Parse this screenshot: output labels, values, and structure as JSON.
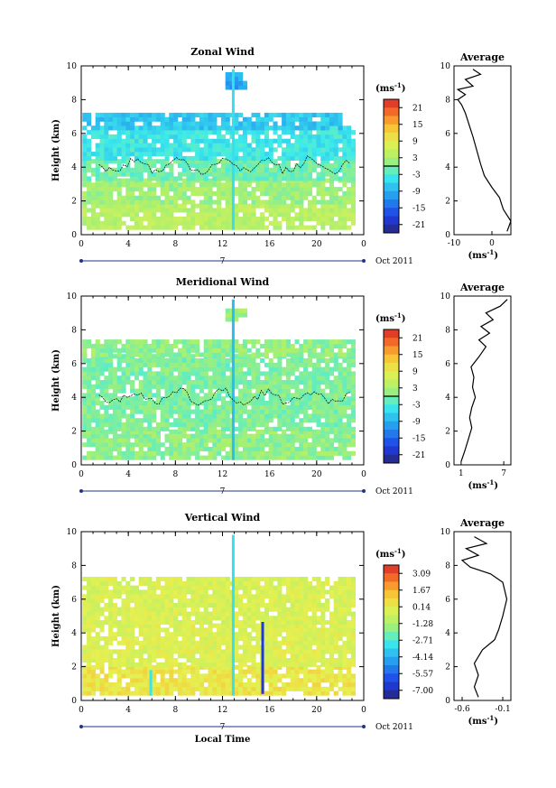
{
  "figure": {
    "xlabel_bottom": "Local Time",
    "date_label": "Oct 2011",
    "day_label": "7",
    "unit_label": "(ms",
    "unit_exp": "-1",
    "unit_close": ")",
    "avg_title": "Average"
  },
  "chart_data": [
    {
      "type": "heatmap",
      "title": "Zonal Wind",
      "ylabel": "Height (km)",
      "xlim": [
        0,
        24
      ],
      "ylim": [
        0,
        10
      ],
      "x_ticks": [
        "0",
        "4",
        "8",
        "12",
        "16",
        "20",
        "0"
      ],
      "y_ticks": [
        "0",
        "2",
        "4",
        "6",
        "8",
        "10"
      ],
      "colorbar_ticks": [
        "21",
        "15",
        "9",
        "3",
        "-3",
        "-9",
        "-15",
        "-21"
      ],
      "colorbar_range": [
        -24,
        24
      ],
      "zero_contour": true,
      "layers": [
        {
          "y0": 0.3,
          "y1": 1.8,
          "value": 4
        },
        {
          "y0": 1.8,
          "y1": 3.2,
          "value": 2
        },
        {
          "y0": 3.2,
          "y1": 4.4,
          "value": -1
        },
        {
          "y0": 4.4,
          "y1": 6.2,
          "value": -4
        },
        {
          "y0": 6.2,
          "y1": 7.0,
          "value": -7
        },
        {
          "y0": 8.6,
          "y1": 9.6,
          "value": -10
        }
      ],
      "average": {
        "xlim": [
          -10,
          5
        ],
        "x_ticks": [
          "-10",
          "0"
        ],
        "x_tick_values": [
          -10,
          0
        ],
        "profile": [
          [
            4,
            0.2
          ],
          [
            5,
            0.8
          ],
          [
            3,
            1.5
          ],
          [
            2,
            2.2
          ],
          [
            0,
            2.8
          ],
          [
            -2,
            3.5
          ],
          [
            -3,
            4.2
          ],
          [
            -4,
            5
          ],
          [
            -5,
            5.8
          ],
          [
            -6,
            6.5
          ],
          [
            -7,
            7.2
          ],
          [
            -8,
            7.7
          ],
          [
            -9,
            8
          ],
          [
            -7,
            8.3
          ],
          [
            -9,
            8.6
          ],
          [
            -5,
            8.8
          ],
          [
            -7,
            9.2
          ],
          [
            -3,
            9.5
          ],
          [
            -5,
            9.8
          ]
        ]
      }
    },
    {
      "type": "heatmap",
      "title": "Meridional Wind",
      "ylabel": "Height (km)",
      "xlim": [
        0,
        24
      ],
      "ylim": [
        0,
        10
      ],
      "x_ticks": [
        "0",
        "4",
        "8",
        "12",
        "16",
        "20",
        "0"
      ],
      "y_ticks": [
        "0",
        "2",
        "4",
        "6",
        "8",
        "10"
      ],
      "colorbar_ticks": [
        "21",
        "15",
        "9",
        "3",
        "-3",
        "-9",
        "-15",
        "-21"
      ],
      "colorbar_range": [
        -24,
        24
      ],
      "zero_contour": true,
      "layers": [
        {
          "y0": 0.3,
          "y1": 2.0,
          "value": 1
        },
        {
          "y0": 2.0,
          "y1": 4.0,
          "value": 0
        },
        {
          "y0": 4.0,
          "y1": 6.4,
          "value": 0
        },
        {
          "y0": 6.4,
          "y1": 7.3,
          "value": 1
        },
        {
          "y0": 8.5,
          "y1": 9.2,
          "value": 2
        }
      ],
      "average": {
        "xlim": [
          0,
          8
        ],
        "x_ticks": [
          "1",
          "7"
        ],
        "x_tick_values": [
          1,
          7
        ],
        "profile": [
          [
            1,
            0.2
          ],
          [
            1.5,
            0.8
          ],
          [
            2,
            1.5
          ],
          [
            2.5,
            2.2
          ],
          [
            2.2,
            2.8
          ],
          [
            2.5,
            3.4
          ],
          [
            3,
            4.0
          ],
          [
            2.6,
            4.6
          ],
          [
            2.8,
            5.2
          ],
          [
            2.4,
            5.8
          ],
          [
            3.5,
            6.4
          ],
          [
            4.5,
            7
          ],
          [
            3.5,
            7.4
          ],
          [
            5,
            7.8
          ],
          [
            3.8,
            8.2
          ],
          [
            5.5,
            8.6
          ],
          [
            4.5,
            9
          ],
          [
            6.5,
            9.4
          ],
          [
            7.5,
            9.8
          ]
        ]
      }
    },
    {
      "type": "heatmap",
      "title": "Vertical Wind",
      "ylabel": "Height (km)",
      "xlabel": "Local Time",
      "xlim": [
        0,
        24
      ],
      "ylim": [
        0,
        10
      ],
      "x_ticks": [
        "0",
        "4",
        "8",
        "12",
        "16",
        "20",
        "0"
      ],
      "y_ticks": [
        "0",
        "2",
        "4",
        "6",
        "8",
        "10"
      ],
      "colorbar_ticks": [
        "3.09",
        "1.67",
        "0.14",
        "-1.28",
        "-2.71",
        "-4.14",
        "-5.57",
        "-7.00"
      ],
      "colorbar_range": [
        -7.7,
        3.8
      ],
      "zero_contour": false,
      "layers": [
        {
          "y0": 0.3,
          "y1": 2.0,
          "value": 0.4
        },
        {
          "y0": 2.0,
          "y1": 4.5,
          "value": -0.1
        },
        {
          "y0": 4.5,
          "y1": 7.3,
          "value": -0.2
        }
      ],
      "average": {
        "xlim": [
          -0.7,
          0
        ],
        "x_ticks": [
          "-0.6",
          "-0.1"
        ],
        "x_tick_values": [
          -0.6,
          -0.1
        ],
        "profile": [
          [
            -0.4,
            0.2
          ],
          [
            -0.45,
            0.8
          ],
          [
            -0.4,
            1.5
          ],
          [
            -0.45,
            2.2
          ],
          [
            -0.35,
            3
          ],
          [
            -0.2,
            3.6
          ],
          [
            -0.15,
            4.2
          ],
          [
            -0.1,
            5
          ],
          [
            -0.05,
            6
          ],
          [
            -0.1,
            7
          ],
          [
            -0.25,
            7.5
          ],
          [
            -0.5,
            7.9
          ],
          [
            -0.6,
            8.3
          ],
          [
            -0.4,
            8.6
          ],
          [
            -0.55,
            9
          ],
          [
            -0.3,
            9.3
          ],
          [
            -0.45,
            9.7
          ]
        ]
      }
    }
  ]
}
